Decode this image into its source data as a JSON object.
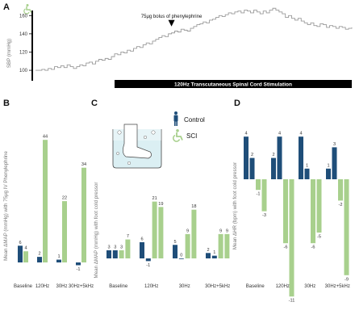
{
  "colors": {
    "control": "#1f4e79",
    "sci": "#a8d08d",
    "trace": "#9a9a9a",
    "bar": "#000000"
  },
  "panel_labels": {
    "a": "A",
    "b": "B",
    "c": "C",
    "d": "D"
  },
  "legend": {
    "control": "Control",
    "sci": "SCI",
    "control_icon": "person-standing-icon",
    "sci_icon": "wheelchair-accessible-icon",
    "foot_icon": "foot-in-cold-water-icon"
  },
  "chart_data": [
    {
      "panel": "A",
      "type": "line",
      "ylabel": "SBP (mmHg)",
      "ylim": [
        85,
        170
      ],
      "yticks": [
        100,
        120,
        140,
        160
      ],
      "annotation": "75μg bolus of phenylephrine",
      "stim_label": "120Hz Transcutaneous Spinal Cord Stimulation",
      "x": [
        0,
        1,
        2,
        3,
        4,
        5,
        6,
        7,
        8,
        9,
        10,
        11,
        12,
        13,
        14,
        15,
        16,
        17,
        18,
        19,
        20,
        21,
        22,
        23,
        24,
        25,
        26,
        27,
        28,
        29,
        30,
        31,
        32,
        33,
        34,
        35,
        36,
        37,
        38,
        39,
        40,
        41,
        42,
        43,
        44,
        45,
        46,
        47,
        48,
        49,
        50,
        51,
        52,
        53,
        54,
        55,
        56,
        57,
        58,
        59,
        60,
        61,
        62,
        63,
        64,
        65,
        66,
        67,
        68,
        69,
        70,
        71,
        72,
        73,
        74,
        75,
        76,
        77,
        78,
        79,
        80,
        81,
        82,
        83,
        84,
        85,
        86,
        87,
        88,
        89,
        90,
        91,
        92,
        93,
        94,
        95,
        96,
        97,
        98,
        99,
        100
      ],
      "values": [
        100,
        100,
        101,
        100,
        102,
        101,
        104,
        103,
        105,
        103,
        106,
        104,
        102,
        104,
        106,
        105,
        108,
        109,
        107,
        110,
        112,
        111,
        113,
        112,
        115,
        118,
        117,
        120,
        119,
        122,
        121,
        124,
        126,
        125,
        128,
        130,
        129,
        132,
        134,
        136,
        138,
        137,
        140,
        141,
        143,
        142,
        145,
        144,
        143,
        146,
        148,
        150,
        151,
        153,
        152,
        155,
        156,
        158,
        160,
        159,
        161,
        163,
        162,
        164,
        165,
        163,
        166,
        165,
        163,
        166,
        164,
        162,
        165,
        163,
        166,
        168,
        166,
        164,
        162,
        158,
        160,
        157,
        155,
        157,
        154,
        152,
        150,
        152,
        149,
        148,
        151,
        150,
        147,
        149,
        148,
        146,
        148,
        147,
        145,
        146,
        147
      ],
      "stim_start_x": 25,
      "annotation_x": 43
    },
    {
      "panel": "B",
      "type": "bar",
      "ylabel": "Mean ΔMAP (mmHg) with 75μg  IV Phenylephrine",
      "categories": [
        "Baseline",
        "120Hz",
        "30Hz",
        "30Hz+5kHz"
      ],
      "series": [
        {
          "name": "Control",
          "values": [
            6,
            2,
            1,
            -1
          ]
        },
        {
          "name": "SCI",
          "values": [
            4,
            44,
            22,
            34
          ]
        }
      ],
      "ylim": [
        -1,
        44
      ]
    },
    {
      "panel": "C",
      "type": "bar",
      "ylabel": "Mean ΔMAP (mmHg) with foot cold pressor",
      "categories": [
        "Baseline",
        "120Hz",
        "30Hz",
        "30Hz+5kHz"
      ],
      "series": [
        {
          "name": "Control",
          "values": [
            3,
            6,
            5,
            2
          ]
        },
        {
          "name": "Control",
          "values": [
            3,
            -1,
            0,
            1
          ]
        },
        {
          "name": "SCI",
          "values": [
            3,
            21,
            9,
            9
          ]
        },
        {
          "name": "SCI",
          "values": [
            7,
            19,
            18,
            9
          ]
        }
      ],
      "ylim": [
        -1,
        21
      ]
    },
    {
      "panel": "D",
      "type": "bar",
      "ylabel": "Mean ΔHR (bpm) with foot cold pressor",
      "categories": [
        "Baseline",
        "120Hz",
        "30Hz",
        "30Hz+5kHz"
      ],
      "series": [
        {
          "name": "Control",
          "values": [
            4,
            2,
            4,
            1
          ]
        },
        {
          "name": "Control",
          "values": [
            2,
            4,
            1,
            3
          ]
        },
        {
          "name": "SCI",
          "values": [
            -1,
            -6,
            -6,
            -2
          ]
        },
        {
          "name": "SCI",
          "values": [
            -3,
            -11,
            -5,
            -9
          ]
        }
      ],
      "ylim": [
        -11,
        4
      ]
    }
  ]
}
